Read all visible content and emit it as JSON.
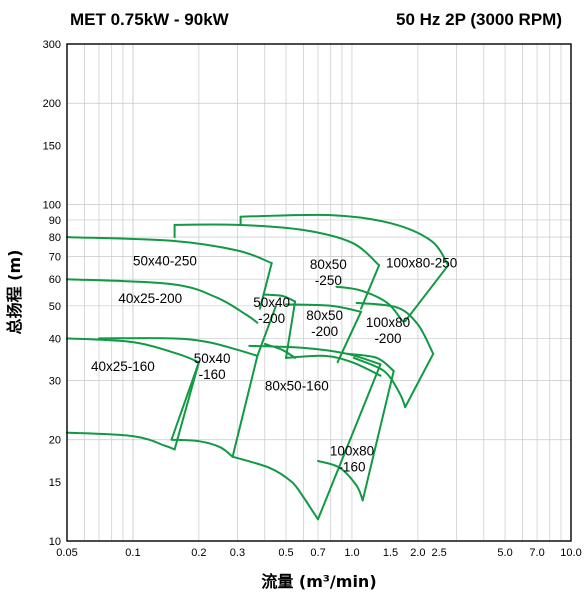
{
  "header": {
    "left": "MET  0.75kW - 90kW",
    "right": "50 Hz 2P (3000 RPM)"
  },
  "chart_data": {
    "type": "line",
    "title": "MET  0.75kW - 90kW",
    "subtitle": "50 Hz 2P (3000 RPM)",
    "xlabel": "流量 (m³/min)",
    "ylabel": "总扬程 (m)",
    "x_scale": "log",
    "y_scale": "log",
    "xlim": [
      0.05,
      10.0
    ],
    "ylim": [
      10,
      300
    ],
    "grid": true,
    "line_color": "#119944",
    "x_ticks": [
      "0.05",
      "0.1",
      "0.2",
      "0.3",
      "0.5",
      "0.7",
      "1.0",
      "1.5",
      "2.0",
      "2.5",
      "5.0",
      "7.0",
      "10.0"
    ],
    "y_ticks": [
      "10",
      "15",
      "20",
      "30",
      "40",
      "50",
      "60",
      "70",
      "80",
      "90",
      "100",
      "150",
      "200",
      "300"
    ],
    "regions": [
      {
        "label": "40x25-160",
        "label_x": 0.09,
        "label_y": 32
      },
      {
        "label": "50x40\n-160",
        "label_x": 0.23,
        "label_y": 32
      },
      {
        "label": "80x50-160",
        "label_x": 0.56,
        "label_y": 28
      },
      {
        "label": "100x80\n-160",
        "label_x": 1.0,
        "label_y": 17
      },
      {
        "label": "40x25-200",
        "label_x": 0.12,
        "label_y": 51
      },
      {
        "label": "50x40\n-200",
        "label_x": 0.43,
        "label_y": 47
      },
      {
        "label": "80x50\n-200",
        "label_x": 0.75,
        "label_y": 43
      },
      {
        "label": "100x80\n-200",
        "label_x": 1.46,
        "label_y": 41
      },
      {
        "label": "50x40-250",
        "label_x": 0.14,
        "label_y": 66
      },
      {
        "label": "80x50\n-250",
        "label_x": 0.78,
        "label_y": 61
      },
      {
        "label": "100x80-250",
        "label_x": 2.08,
        "label_y": 65
      }
    ],
    "curves": [
      {
        "name": "40x25-160 (top)",
        "points": [
          [
            0.05,
            40
          ],
          [
            0.1,
            39
          ],
          [
            0.16,
            36
          ],
          [
            0.2,
            34
          ]
        ]
      },
      {
        "name": "40x25-160 (bottom)",
        "points": [
          [
            0.05,
            21
          ],
          [
            0.1,
            20.5
          ],
          [
            0.14,
            19.2
          ],
          [
            0.155,
            18.7
          ]
        ]
      },
      {
        "name": "40x25-160 (right edge)",
        "points": [
          [
            0.2,
            34
          ],
          [
            0.155,
            18.7
          ]
        ]
      },
      {
        "name": "50x40-160 (top)",
        "points": [
          [
            0.07,
            40
          ],
          [
            0.15,
            40
          ],
          [
            0.22,
            39
          ],
          [
            0.3,
            37
          ],
          [
            0.37,
            35.5
          ]
        ]
      },
      {
        "name": "50x40-160 (bottom)",
        "points": [
          [
            0.15,
            20
          ],
          [
            0.2,
            19.8
          ],
          [
            0.25,
            19
          ],
          [
            0.285,
            17.8
          ]
        ]
      },
      {
        "name": "50x40-160 (left edge)",
        "points": [
          [
            0.2,
            34
          ],
          [
            0.15,
            20
          ]
        ]
      },
      {
        "name": "50x40-160 (right edge)",
        "points": [
          [
            0.37,
            35.5
          ],
          [
            0.285,
            17.8
          ]
        ]
      },
      {
        "name": "80x50-160 (top)",
        "points": [
          [
            0.34,
            38
          ],
          [
            0.6,
            37.5
          ],
          [
            0.95,
            36
          ],
          [
            1.35,
            33.5
          ]
        ]
      },
      {
        "name": "80x50-160 (bottom)",
        "points": [
          [
            0.285,
            17.8
          ],
          [
            0.42,
            16.5
          ],
          [
            0.53,
            15
          ],
          [
            0.6,
            13.5
          ],
          [
            0.66,
            12.3
          ],
          [
            0.7,
            11.6
          ]
        ]
      },
      {
        "name": "80x50-160 (right edge)",
        "points": [
          [
            1.35,
            33.5
          ],
          [
            0.7,
            11.6
          ]
        ]
      },
      {
        "name": "100x80-160 (top)",
        "points": [
          [
            0.95,
            36
          ],
          [
            1.3,
            35
          ],
          [
            1.55,
            32
          ]
        ]
      },
      {
        "name": "100x80-160 (bottom)",
        "points": [
          [
            0.7,
            17.3
          ],
          [
            0.88,
            16.5
          ],
          [
            1.05,
            14.6
          ],
          [
            1.12,
            13.2
          ]
        ]
      },
      {
        "name": "100x80-160 (right edge)",
        "points": [
          [
            1.55,
            32
          ],
          [
            1.12,
            13.2
          ]
        ]
      },
      {
        "name": "40x25-200 (top)",
        "points": [
          [
            0.05,
            60
          ],
          [
            0.15,
            58
          ],
          [
            0.24,
            53
          ],
          [
            0.33,
            47
          ],
          [
            0.37,
            44.5
          ]
        ]
      },
      {
        "name": "40x25-200 (edge)",
        "points": [
          [
            0.45,
            50
          ],
          [
            0.37,
            35.5
          ]
        ]
      },
      {
        "name": "50x40-200 (top)",
        "points": [
          [
            0.4,
            54
          ],
          [
            0.48,
            53.5
          ],
          [
            0.55,
            51.5
          ]
        ]
      },
      {
        "name": "50x40-200 (bottom)",
        "points": [
          [
            0.4,
            38.5
          ],
          [
            0.48,
            37
          ],
          [
            0.55,
            35
          ]
        ]
      },
      {
        "name": "50x40-200 (right edge)",
        "points": [
          [
            0.55,
            51.5
          ],
          [
            0.5,
            35
          ]
        ]
      },
      {
        "name": "80x50-200 (top)",
        "points": [
          [
            0.5,
            50.5
          ],
          [
            0.8,
            50
          ],
          [
            1.1,
            48
          ]
        ]
      },
      {
        "name": "80x50-200 (bottom)",
        "points": [
          [
            0.5,
            35
          ],
          [
            0.75,
            35.5
          ],
          [
            1.0,
            34
          ],
          [
            1.35,
            31
          ]
        ]
      },
      {
        "name": "80x50-200 (right edge)",
        "points": [
          [
            1.1,
            48
          ],
          [
            0.86,
            34
          ]
        ]
      },
      {
        "name": "100x80-200 (top)",
        "points": [
          [
            1.05,
            51
          ],
          [
            1.6,
            49.5
          ],
          [
            2.0,
            44
          ],
          [
            2.35,
            36
          ]
        ]
      },
      {
        "name": "100x80-200 (bottom)",
        "points": [
          [
            1.02,
            35
          ],
          [
            1.4,
            32
          ],
          [
            1.65,
            27.5
          ],
          [
            1.75,
            25
          ]
        ]
      },
      {
        "name": "100x80-200 (right edge)",
        "points": [
          [
            2.35,
            36
          ],
          [
            1.75,
            25
          ]
        ]
      },
      {
        "name": "50x40-250 (top)",
        "points": [
          [
            0.05,
            80
          ],
          [
            0.15,
            78
          ],
          [
            0.3,
            73
          ],
          [
            0.43,
            67
          ]
        ]
      },
      {
        "name": "50x40-250 (right edge)",
        "points": [
          [
            0.43,
            67
          ],
          [
            0.38,
            49
          ]
        ]
      },
      {
        "name": "80x50-250 (top)",
        "points": [
          [
            0.155,
            87
          ],
          [
            0.3,
            87
          ],
          [
            0.6,
            84
          ],
          [
            1.0,
            77
          ],
          [
            1.33,
            66
          ]
        ]
      },
      {
        "name": "80x50-250 (left edge)",
        "points": [
          [
            0.155,
            87
          ],
          [
            0.155,
            80
          ]
        ]
      },
      {
        "name": "80x50-250 (right edge)",
        "points": [
          [
            1.33,
            66
          ],
          [
            1.1,
            49
          ]
        ]
      },
      {
        "name": "100x80-250 (top)",
        "points": [
          [
            0.31,
            92
          ],
          [
            0.8,
            93
          ],
          [
            1.5,
            88
          ],
          [
            2.3,
            78
          ],
          [
            2.75,
            66
          ]
        ]
      },
      {
        "name": "100x80-250 (left edge)",
        "points": [
          [
            0.31,
            92
          ],
          [
            0.31,
            88
          ]
        ]
      },
      {
        "name": "100x80-250 (bottom)",
        "points": [
          [
            0.85,
            57
          ],
          [
            1.1,
            55.5
          ],
          [
            1.45,
            51
          ],
          [
            1.7,
            45
          ]
        ]
      },
      {
        "name": "100x80-250 (right edge)",
        "points": [
          [
            2.75,
            66
          ],
          [
            1.75,
            45
          ]
        ]
      }
    ]
  }
}
